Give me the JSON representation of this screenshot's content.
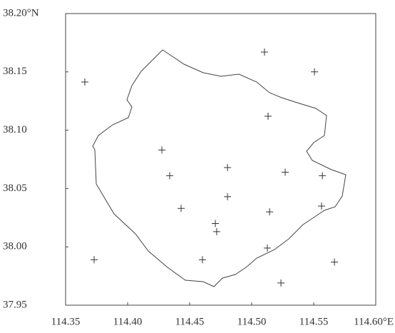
{
  "chart_data": {
    "type": "scatter",
    "x": [
      114.3655,
      114.5103,
      114.5506,
      114.5132,
      114.4276,
      114.4339,
      114.4805,
      114.527,
      114.557,
      114.4805,
      114.4431,
      114.5144,
      114.5563,
      114.4707,
      114.4718,
      114.5126,
      114.373,
      114.4603,
      114.5667,
      114.5236
    ],
    "values": [
      38.1413,
      38.167,
      38.15,
      38.112,
      38.083,
      38.061,
      38.068,
      38.064,
      38.061,
      38.043,
      38.033,
      38.03,
      38.035,
      38.02,
      38.013,
      37.999,
      37.989,
      37.989,
      37.987,
      37.969
    ],
    "color": "#333333",
    "xlim": [
      114.35,
      114.6
    ],
    "ylim": [
      37.95,
      38.2
    ],
    "xticks": [
      114.35,
      {
        "value": 114.4,
        "label": "114.40"
      },
      114.45,
      {
        "value": 114.5,
        "label": "114.50"
      },
      114.55,
      {
        "value": 114.6,
        "label": "114.60°E"
      }
    ],
    "yticks": [
      37.95,
      {
        "value": 38.0,
        "label": "38.00"
      },
      38.05,
      {
        "value": 38.1,
        "label": "38.10"
      },
      38.15,
      {
        "value": 38.2,
        "label": "38.20°N"
      }
    ]
  }
}
